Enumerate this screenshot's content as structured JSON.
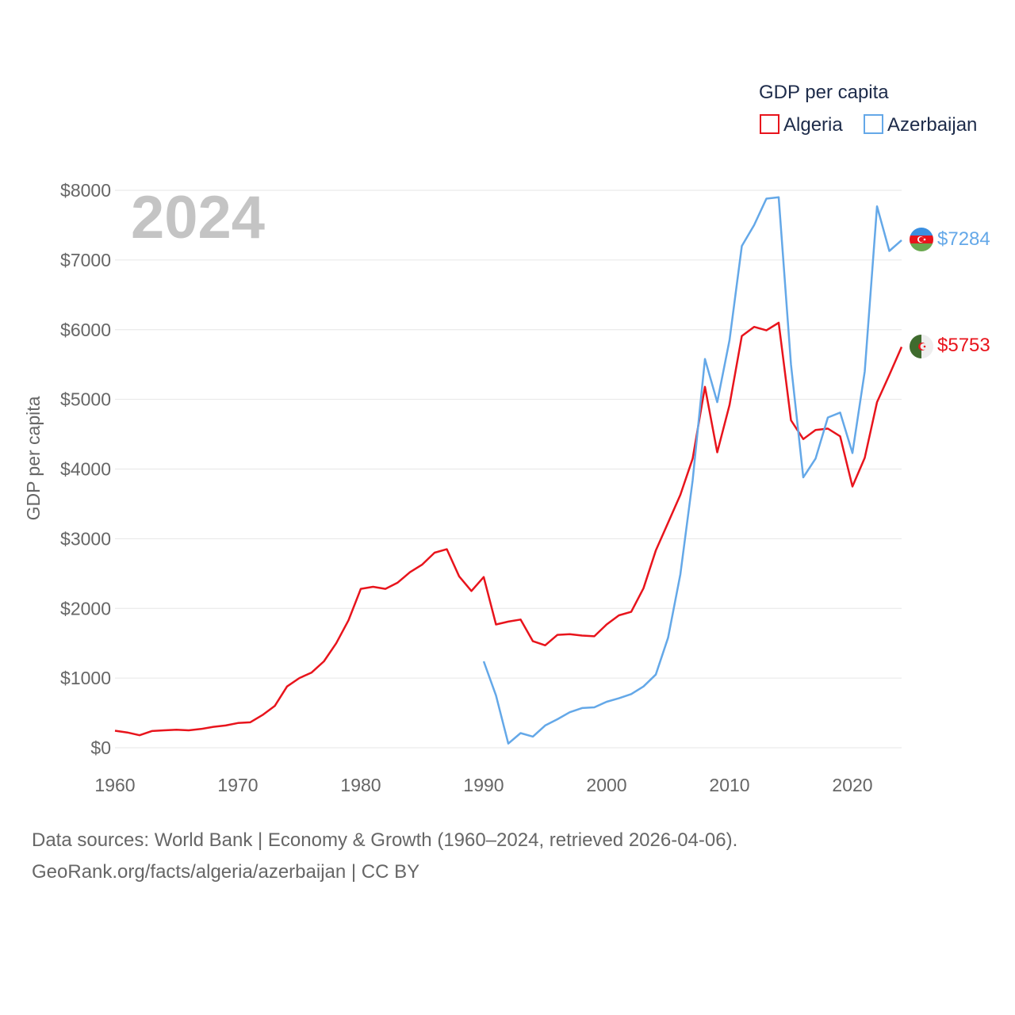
{
  "legend": {
    "title": "GDP per capita",
    "items": [
      {
        "label": "Algeria",
        "color": "#e8141c"
      },
      {
        "label": "Azerbaijan",
        "color": "#64a8e8"
      }
    ]
  },
  "year_label": "2024",
  "end_labels": {
    "algeria": "$5753",
    "azerbaijan": "$7284"
  },
  "icons": {
    "algeria_flag": "algeria-flag-icon",
    "azerbaijan_flag": "azerbaijan-flag-icon"
  },
  "footer": {
    "line1": "Data sources: World Bank | Economy & Growth (1960–2024, retrieved 2026-04-06).",
    "line2": "GeoRank.org/facts/algeria/azerbaijan | CC BY"
  },
  "chart_data": {
    "type": "line",
    "title": "GDP per capita",
    "xlabel": "",
    "ylabel": "GDP per capita",
    "xlim": [
      1960,
      2024
    ],
    "ylim": [
      0,
      8000
    ],
    "x_ticks": [
      1960,
      1970,
      1980,
      1990,
      2000,
      2010,
      2020
    ],
    "x_tick_labels": [
      "1960",
      "1970",
      "1980",
      "1990",
      "2000",
      "2010",
      "2020"
    ],
    "y_ticks": [
      0,
      1000,
      2000,
      3000,
      4000,
      5000,
      6000,
      7000,
      8000
    ],
    "y_tick_labels": [
      "$0",
      "$1000",
      "$2000",
      "$3000",
      "$4000",
      "$5000",
      "$6000",
      "$7000",
      "$8000"
    ],
    "grid": true,
    "legend_position": "top-right",
    "series": [
      {
        "name": "Algeria",
        "color": "#e8141c",
        "x": [
          1960,
          1961,
          1962,
          1963,
          1964,
          1965,
          1966,
          1967,
          1968,
          1969,
          1970,
          1971,
          1972,
          1973,
          1974,
          1975,
          1976,
          1977,
          1978,
          1979,
          1980,
          1981,
          1982,
          1983,
          1984,
          1985,
          1986,
          1987,
          1988,
          1989,
          1990,
          1991,
          1992,
          1993,
          1994,
          1995,
          1996,
          1997,
          1998,
          1999,
          2000,
          2001,
          2002,
          2003,
          2004,
          2005,
          2006,
          2007,
          2008,
          2009,
          2010,
          2011,
          2012,
          2013,
          2014,
          2015,
          2016,
          2017,
          2018,
          2019,
          2020,
          2021,
          2022,
          2023,
          2024
        ],
        "values": [
          245,
          220,
          180,
          240,
          250,
          260,
          250,
          270,
          300,
          320,
          355,
          365,
          470,
          600,
          880,
          1000,
          1080,
          1240,
          1500,
          1830,
          2280,
          2310,
          2280,
          2370,
          2520,
          2630,
          2800,
          2850,
          2460,
          2250,
          2450,
          1770,
          1810,
          1840,
          1530,
          1470,
          1620,
          1630,
          1610,
          1600,
          1770,
          1900,
          1950,
          2290,
          2830,
          3230,
          3630,
          4150,
          5180,
          4240,
          4920,
          5910,
          6040,
          5990,
          6100,
          4700,
          4430,
          4560,
          4580,
          4470,
          3750,
          4160,
          4960,
          5350,
          5753
        ]
      },
      {
        "name": "Azerbaijan",
        "color": "#64a8e8",
        "x": [
          1990,
          1991,
          1992,
          1993,
          1994,
          1995,
          1996,
          1997,
          1998,
          1999,
          2000,
          2001,
          2002,
          2003,
          2004,
          2005,
          2006,
          2007,
          2008,
          2009,
          2010,
          2011,
          2012,
          2013,
          2014,
          2015,
          2016,
          2017,
          2018,
          2019,
          2020,
          2021,
          2022,
          2023,
          2024
        ],
        "values": [
          1240,
          750,
          60,
          210,
          160,
          320,
          410,
          510,
          570,
          580,
          660,
          710,
          770,
          880,
          1050,
          1580,
          2490,
          3840,
          5580,
          4960,
          5850,
          7200,
          7500,
          7880,
          7900,
          5500,
          3880,
          4150,
          4740,
          4810,
          4230,
          5400,
          7770,
          7130,
          7284
        ]
      }
    ]
  }
}
